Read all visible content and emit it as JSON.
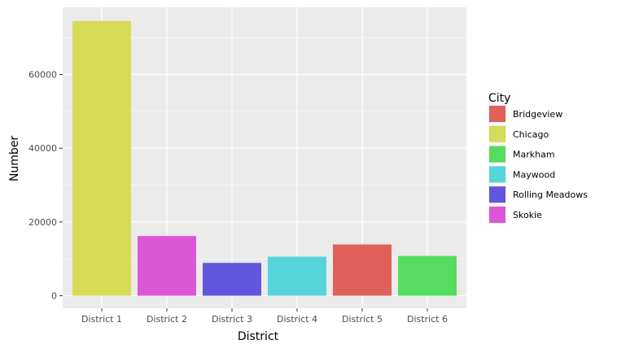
{
  "chart_data": {
    "type": "bar",
    "categories": [
      "District 1",
      "District 2",
      "District 3",
      "District 4",
      "District 5",
      "District 6"
    ],
    "values": [
      74500,
      16200,
      8900,
      10600,
      13900,
      10800
    ],
    "bar_cities": [
      "Chicago",
      "Skokie",
      "Rolling Meadows",
      "Maywood",
      "Bridgeview",
      "Markham"
    ],
    "xlabel": "District",
    "ylabel": "Number",
    "ylim": [
      -3400,
      78200
    ],
    "yticks": [
      0,
      20000,
      40000,
      60000
    ],
    "ytick_labels": [
      "0",
      "20000",
      "40000",
      "60000"
    ],
    "grid": true,
    "legend": {
      "title": "City",
      "position": "right",
      "entries": [
        {
          "name": "Bridgeview",
          "color": "#e06159"
        },
        {
          "name": "Chicago",
          "color": "#d4dc58"
        },
        {
          "name": "Markham",
          "color": "#56dc5e"
        },
        {
          "name": "Maywood",
          "color": "#56d4dc"
        },
        {
          "name": "Rolling Meadows",
          "color": "#6257dc"
        },
        {
          "name": "Skokie",
          "color": "#dc57d6"
        }
      ]
    }
  }
}
